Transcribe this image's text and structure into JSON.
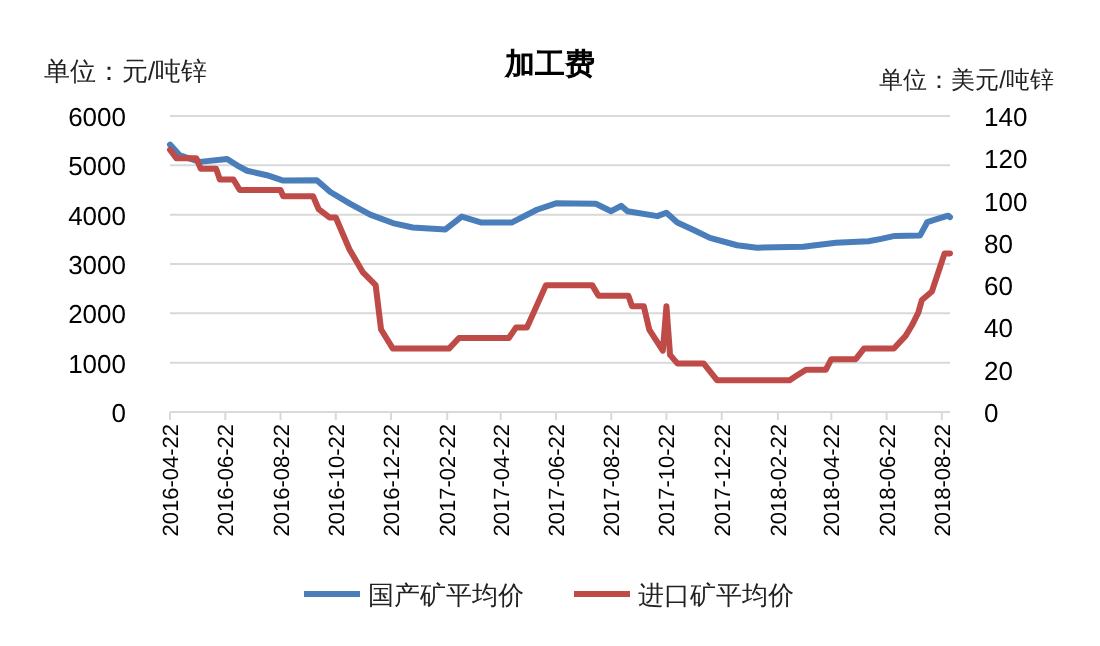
{
  "chart_data": {
    "type": "line",
    "title": "加工费",
    "ylabel": "单位：元/吨锌",
    "y2label": "单位：美元/吨锌",
    "xlim": [
      "2016-04-22",
      "2018-08-31"
    ],
    "xticks": [
      "2016-04-22",
      "2016-06-22",
      "2016-08-22",
      "2016-10-22",
      "2016-12-22",
      "2017-02-22",
      "2017-04-22",
      "2017-06-22",
      "2017-08-22",
      "2017-10-22",
      "2017-12-22",
      "2018-02-22",
      "2018-04-22",
      "2018-06-22",
      "2018-08-22"
    ],
    "ylim": [
      0,
      6000
    ],
    "yticks": [
      0,
      1000,
      2000,
      3000,
      4000,
      5000,
      6000
    ],
    "y2lim": [
      0,
      140
    ],
    "y2ticks": [
      0,
      20,
      40,
      60,
      80,
      100,
      120,
      140
    ],
    "grid": "y",
    "legend": "bottom",
    "marker": "none",
    "line_style": "solid",
    "series": [
      {
        "name": "国产矿平均价",
        "color": "#4a7ebb",
        "x": [
          "2016-04-22",
          "2016-05-03",
          "2016-05-25",
          "2016-06-24",
          "2016-07-05",
          "2016-07-16",
          "2016-08-07",
          "2016-08-25",
          "2016-10-01",
          "2016-10-16",
          "2016-11-07",
          "2016-11-29",
          "2016-12-24",
          "2017-01-15",
          "2017-02-20",
          "2017-03-10",
          "2017-04-01",
          "2017-05-04",
          "2017-06-01",
          "2017-06-22",
          "2017-08-05",
          "2017-08-22",
          "2017-09-02",
          "2017-09-09",
          "2017-10-12",
          "2017-10-22",
          "2017-11-03",
          "2017-11-21",
          "2017-12-09",
          "2018-01-08",
          "2018-01-30",
          "2018-03-22",
          "2018-04-27",
          "2018-06-02",
          "2018-06-16",
          "2018-07-01",
          "2018-07-29",
          "2018-08-06",
          "2018-08-18",
          "2018-08-29",
          "2018-08-31"
        ],
        "values": [
          5420,
          5200,
          5070,
          5130,
          5000,
          4890,
          4800,
          4690,
          4700,
          4460,
          4220,
          4000,
          3830,
          3740,
          3700,
          3960,
          3840,
          3840,
          4100,
          4230,
          4220,
          4070,
          4180,
          4070,
          3970,
          4040,
          3840,
          3690,
          3530,
          3380,
          3330,
          3350,
          3430,
          3460,
          3510,
          3570,
          3580,
          3850,
          3920,
          3980,
          3950
        ]
      },
      {
        "name": "进口矿平均价",
        "color": "#be4b48",
        "axis": "y2",
        "x": [
          "2016-04-22",
          "2016-04-29",
          "2016-05-21",
          "2016-05-26",
          "2016-06-12",
          "2016-06-16",
          "2016-07-01",
          "2016-07-08",
          "2016-08-22",
          "2016-08-25",
          "2016-09-27",
          "2016-10-03",
          "2016-10-15",
          "2016-10-22",
          "2016-11-06",
          "2016-11-21",
          "2016-12-05",
          "2016-12-11",
          "2016-12-24",
          "2017-02-24",
          "2017-03-07",
          "2017-05-01",
          "2017-05-09",
          "2017-05-21",
          "2017-06-11",
          "2017-08-01",
          "2017-08-08",
          "2017-09-10",
          "2017-09-14",
          "2017-09-27",
          "2017-10-03",
          "2017-10-18",
          "2017-10-22",
          "2017-10-26",
          "2017-11-03",
          "2017-12-02",
          "2017-12-17",
          "2018-03-07",
          "2018-03-14",
          "2018-03-25",
          "2018-04-16",
          "2018-04-22",
          "2018-05-19",
          "2018-05-28",
          "2018-06-30",
          "2018-07-13",
          "2018-07-20",
          "2018-07-27",
          "2018-07-31",
          "2018-08-11",
          "2018-08-18",
          "2018-08-25",
          "2018-08-31"
        ],
        "values": [
          124,
          120,
          120,
          115,
          115,
          110,
          110,
          105,
          105,
          102,
          102,
          96,
          92,
          92,
          77,
          66,
          60,
          39,
          30,
          30,
          35,
          35,
          40,
          40,
          60,
          60,
          55,
          55,
          50,
          50,
          39,
          29,
          50,
          27,
          23,
          23,
          15,
          15,
          17,
          20,
          20,
          25,
          25,
          30,
          30,
          36,
          41,
          47,
          53,
          57,
          66,
          75,
          75
        ]
      }
    ]
  }
}
